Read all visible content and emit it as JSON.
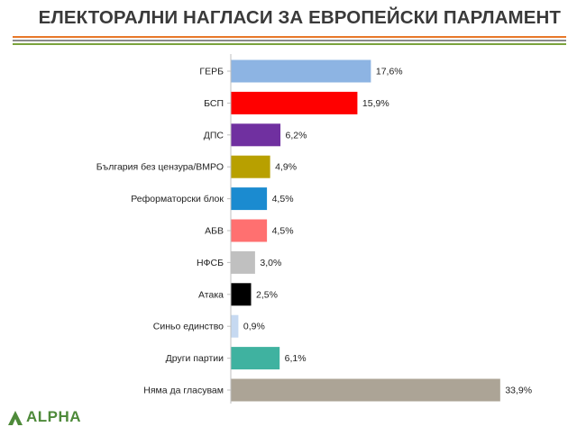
{
  "header": {
    "title": "ЕЛЕКТОРАЛНИ НАГЛАСИ ЗА ЕВРОПЕЙСКИ ПАРЛАМЕНТ",
    "stripe_colors": [
      "#e8782a",
      "#8a8a8a",
      "#7aa33c"
    ]
  },
  "logo": {
    "text": "ALPHA",
    "color": "#4e8a3a"
  },
  "chart_data": {
    "type": "bar",
    "orientation": "horizontal",
    "title": "",
    "xlabel": "",
    "ylabel": "",
    "xlim": [
      0,
      36
    ],
    "grid": false,
    "legend": "none",
    "categories": [
      "ГЕРБ",
      "БСП",
      "ДПС",
      "България без цензура/ВМРО",
      "Реформаторски блок",
      "АБВ",
      "НФСБ",
      "Атака",
      "Синьо единство",
      "Други партии",
      "Няма да гласувам"
    ],
    "values": [
      17.6,
      15.9,
      6.2,
      4.9,
      4.5,
      4.5,
      3.0,
      2.5,
      0.9,
      6.1,
      33.9
    ],
    "value_labels": [
      "17,6%",
      "15,9%",
      "6,2%",
      "4,9%",
      "4,5%",
      "4,5%",
      "3,0%",
      "2,5%",
      "0,9%",
      "6,1%",
      "33,9%"
    ],
    "colors": [
      "#8db4e3",
      "#ff0000",
      "#7030a0",
      "#b8a000",
      "#1b8bd0",
      "#ff7070",
      "#c0c0c0",
      "#000000",
      "#c6d9f1",
      "#3fb2a0",
      "#aca496"
    ]
  }
}
